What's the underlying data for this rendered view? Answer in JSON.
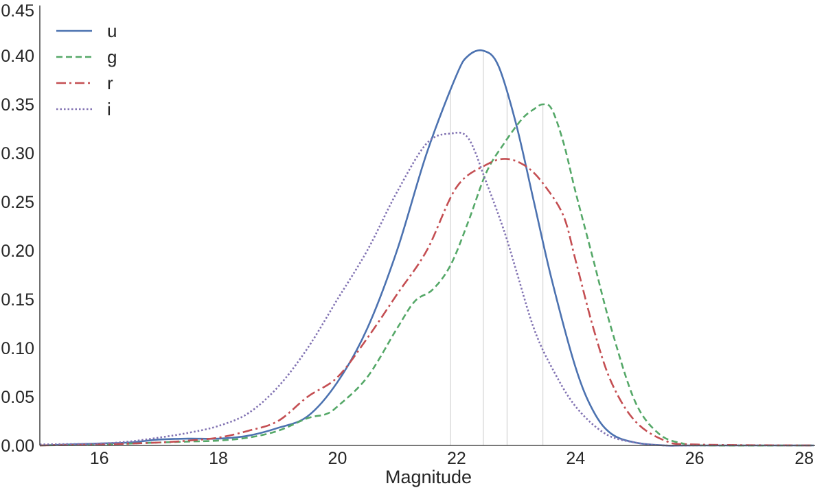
{
  "chart_data": {
    "type": "line",
    "title": "",
    "xlabel": "Magnitude",
    "ylabel": "",
    "xlim": [
      15,
      28
    ],
    "ylim": [
      0,
      0.45
    ],
    "xticks": [
      "16",
      "18",
      "20",
      "22",
      "24",
      "26",
      "28"
    ],
    "yticks": [
      "0.00",
      "0.05",
      "0.10",
      "0.15",
      "0.20",
      "0.25",
      "0.30",
      "0.35",
      "0.40",
      "0.45"
    ],
    "grid": false,
    "legend_position": "top-left",
    "vlines": [
      21.9,
      22.45,
      22.85,
      23.45
    ],
    "series": [
      {
        "name": "u",
        "color": "#4c72b0",
        "dash": "solid",
        "x": [
          15,
          16,
          16.5,
          17,
          17.5,
          18,
          18.5,
          19,
          19.5,
          20,
          20.5,
          21,
          21.5,
          22,
          22.2,
          22.45,
          22.7,
          23,
          23.3,
          23.6,
          24,
          24.3,
          24.6,
          25,
          25.5,
          26,
          28
        ],
        "y": [
          0.0,
          0.002,
          0.003,
          0.006,
          0.007,
          0.007,
          0.01,
          0.018,
          0.03,
          0.065,
          0.12,
          0.2,
          0.3,
          0.38,
          0.4,
          0.405,
          0.39,
          0.33,
          0.25,
          0.17,
          0.08,
          0.035,
          0.012,
          0.003,
          0.0,
          0.0,
          0.0
        ]
      },
      {
        "name": "g",
        "color": "#55a868",
        "dash": "dashed",
        "x": [
          15,
          16,
          17,
          17.5,
          18,
          18.5,
          19,
          19.5,
          19.8,
          20,
          20.5,
          21,
          21.3,
          21.6,
          21.9,
          22.2,
          22.5,
          22.8,
          23.1,
          23.3,
          23.45,
          23.6,
          23.8,
          24,
          24.3,
          24.6,
          25,
          25.4,
          25.8,
          26.2,
          28
        ],
        "y": [
          0.0,
          0.001,
          0.003,
          0.004,
          0.005,
          0.008,
          0.015,
          0.028,
          0.032,
          0.04,
          0.07,
          0.12,
          0.148,
          0.16,
          0.185,
          0.23,
          0.28,
          0.31,
          0.335,
          0.345,
          0.35,
          0.345,
          0.31,
          0.26,
          0.19,
          0.12,
          0.045,
          0.012,
          0.002,
          0.0,
          0.0
        ]
      },
      {
        "name": "r",
        "color": "#c44e52",
        "dash": "dashdot",
        "x": [
          15,
          16,
          17,
          17.5,
          18,
          18.5,
          19,
          19.5,
          20,
          20.5,
          21,
          21.5,
          22,
          22.5,
          22.85,
          23.2,
          23.5,
          23.8,
          24,
          24.3,
          24.6,
          25,
          25.5,
          26,
          28
        ],
        "y": [
          0.0,
          0.001,
          0.003,
          0.005,
          0.008,
          0.015,
          0.025,
          0.05,
          0.07,
          0.11,
          0.155,
          0.2,
          0.265,
          0.288,
          0.294,
          0.285,
          0.265,
          0.235,
          0.19,
          0.12,
          0.065,
          0.025,
          0.005,
          0.001,
          0.0
        ]
      },
      {
        "name": "i",
        "color": "#8172b2",
        "dash": "dotted",
        "x": [
          15,
          16,
          16.5,
          17,
          17.5,
          18,
          18.5,
          19,
          19.5,
          20,
          20.5,
          21,
          21.5,
          21.9,
          22.2,
          22.5,
          22.8,
          23,
          23.3,
          23.6,
          24,
          24.5,
          25,
          25.5,
          26,
          28
        ],
        "y": [
          0.001,
          0.002,
          0.004,
          0.008,
          0.013,
          0.02,
          0.033,
          0.06,
          0.1,
          0.15,
          0.2,
          0.26,
          0.31,
          0.32,
          0.315,
          0.27,
          0.22,
          0.18,
          0.12,
          0.08,
          0.04,
          0.012,
          0.003,
          0.0,
          0.0,
          0.0
        ]
      }
    ]
  }
}
